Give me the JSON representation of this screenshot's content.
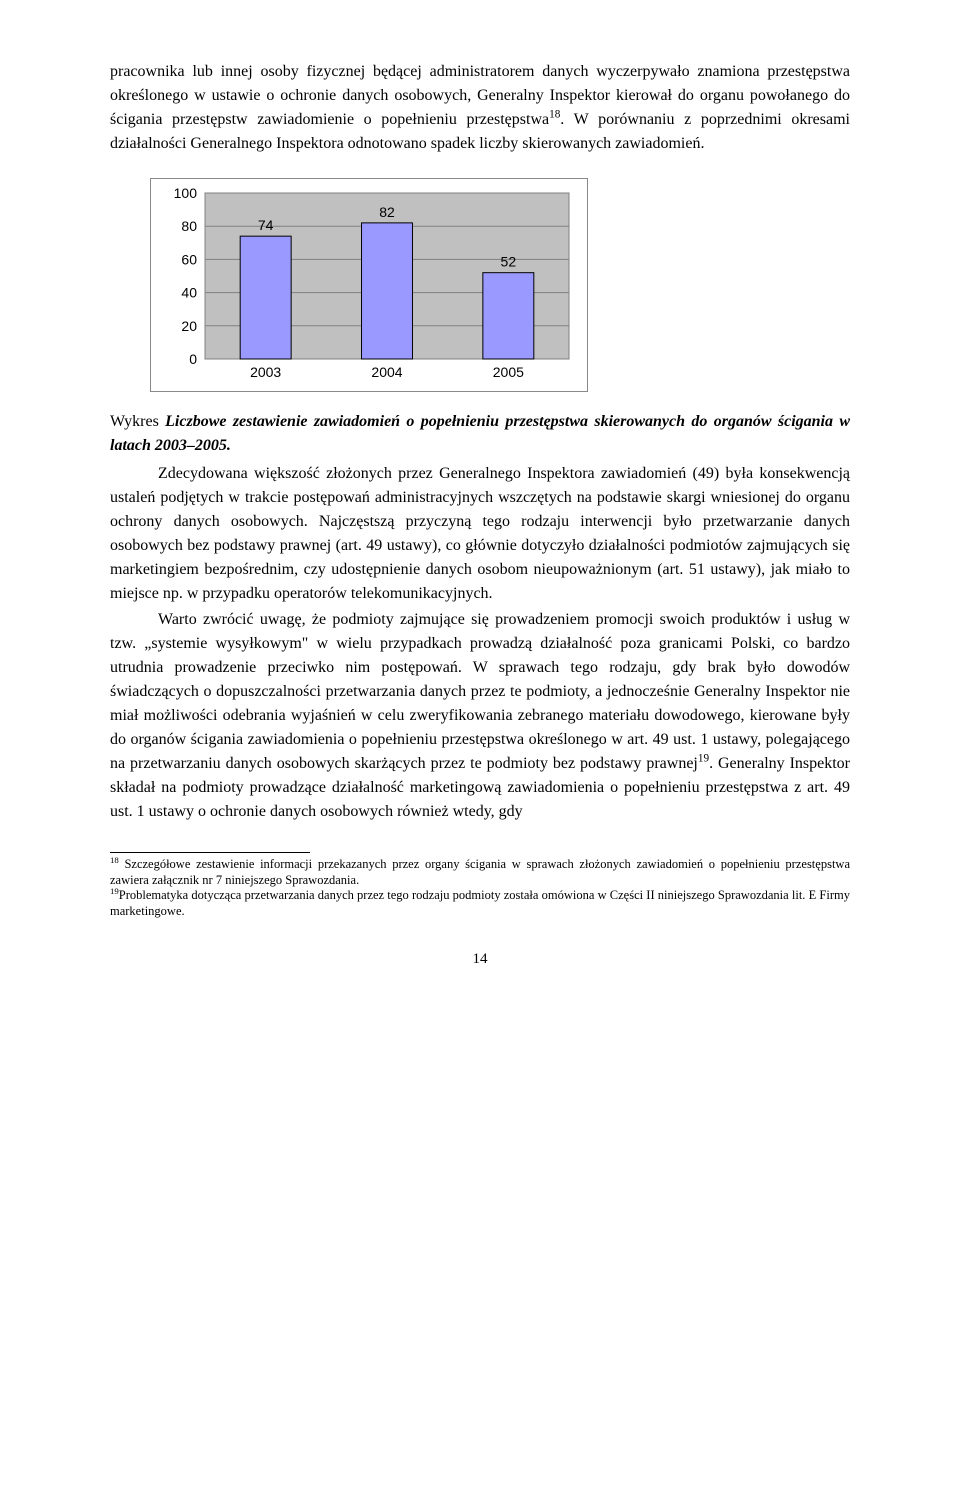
{
  "para1": "pracownika lub innej osoby fizycznej będącej administratorem danych wyczerpywało znamiona przestępstwa określonego w ustawie o ochronie danych osobowych, Generalny Inspektor kierował do organu powołanego do ścigania przestępstw zawiadomienie o popełnieniu przestępstwa",
  "para1_sup": "18",
  "para1_after": ". W porównaniu z poprzednimi okresami działalności Generalnego Inspektora odnotowano spadek liczby skierowanych zawiadomień.",
  "chart": {
    "type": "bar",
    "categories": [
      "2003",
      "2004",
      "2005"
    ],
    "values": [
      74,
      82,
      52
    ],
    "ylim": [
      0,
      100
    ],
    "ytick_step": 20,
    "bar_color": "#9999ff",
    "bar_border": "#000000",
    "bar_width": 0.42,
    "grid_color": "#808080",
    "plot_bg": "#c0c0c0",
    "outer_bg": "#ffffff",
    "label_fontsize": 14,
    "label_font": "Arial, Helvetica, sans-serif"
  },
  "caption_prefix": "Wykres ",
  "caption_italic": "Liczbowe zestawienie zawiadomień o popełnieniu przestępstwa skierowanych do organów ścigania w latach 2003–2005.",
  "para2": "Zdecydowana większość złożonych przez Generalnego Inspektora zawiadomień (49) była konsekwencją ustaleń podjętych w trakcie postępowań administracyjnych wszczętych na podstawie skargi wniesionej do organu ochrony danych osobowych. Najczęstszą przyczyną tego rodzaju interwencji było przetwarzanie danych osobowych bez podstawy prawnej (art. 49 ustawy), co głównie dotyczyło działalności podmiotów zajmujących się marketingiem bezpośrednim, czy udostępnienie danych osobom nieupoważnionym (art. 51 ustawy), jak miało to miejsce np. w przypadku operatorów telekomunikacyjnych.",
  "para3a": "Warto zwrócić uwagę, że podmioty zajmujące się prowadzeniem promocji swoich produktów i usług w tzw. „systemie wysyłkowym\" w wielu przypadkach prowadzą działalność poza granicami Polski, co bardzo utrudnia prowadzenie przeciwko nim postępowań. W sprawach tego rodzaju, gdy brak było dowodów świadczących o dopuszczalności przetwarzania danych przez te podmioty, a jednocześnie Generalny Inspektor nie miał możliwości odebrania wyjaśnień w celu zweryfikowania zebranego materiału dowodowego, kierowane były do organów ścigania zawiadomienia o popełnieniu przestępstwa określonego w art. 49 ust. 1 ustawy, polegającego na przetwarzaniu danych osobowych skarżących przez te podmioty bez podstawy prawnej",
  "para3_sup": "19",
  "para3b": ". Generalny Inspektor składał na podmioty prowadzące działalność marketingową zawiadomienia o popełnieniu przestępstwa z art. 49 ust. 1 ustawy o ochronie danych osobowych również wtedy, gdy",
  "footnote18_num": "18",
  "footnote18": " Szczegółowe zestawienie informacji przekazanych przez organy ścigania w sprawach złożonych zawiadomień o popełnieniu przestępstwa zawiera załącznik nr 7 niniejszego Sprawozdania.",
  "footnote19_num": "19",
  "footnote19": "Problematyka dotycząca przetwarzania danych przez tego rodzaju podmioty została omówiona w Części II niniejszego Sprawozdania lit. E Firmy marketingowe.",
  "pagenum": "14"
}
